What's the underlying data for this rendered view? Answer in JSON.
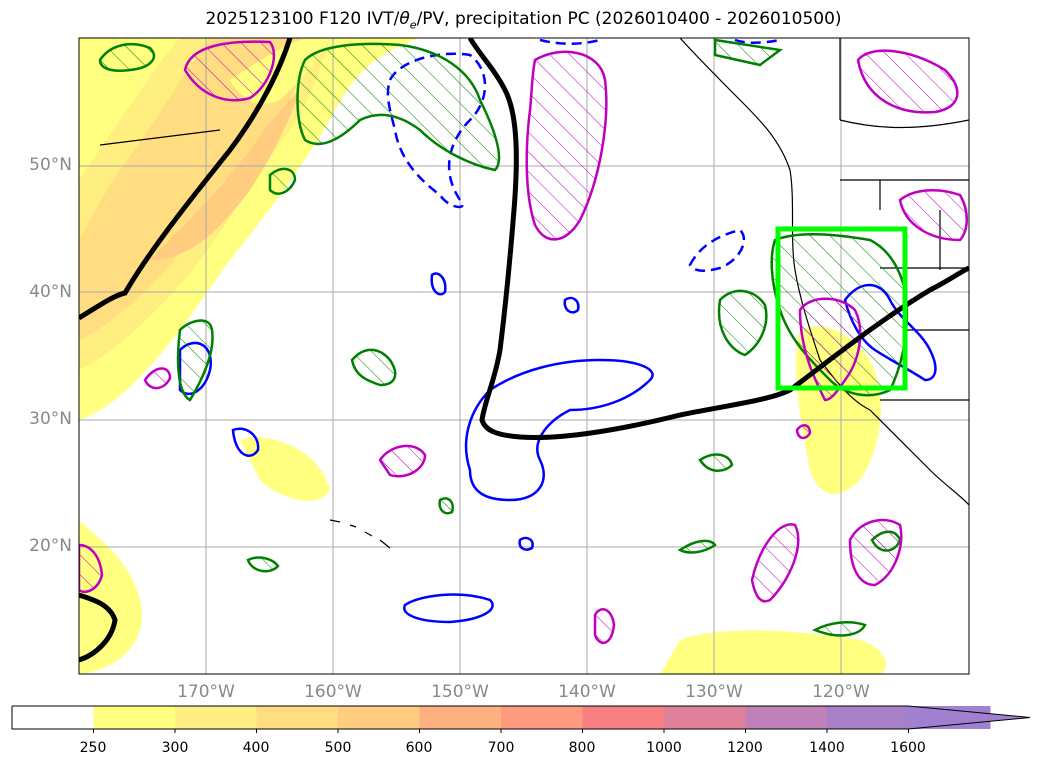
{
  "title_parts": {
    "pre": "2025123100 F120 IVT/",
    "theta": "θ",
    "sub": "e",
    "post": "/PV, precipitation PC (2026010400 - 2026010500)"
  },
  "map": {
    "lat_labels": [
      "50°N",
      "40°N",
      "30°N",
      "20°N"
    ],
    "lon_labels": [
      "170°W",
      "160°W",
      "150°W",
      "140°W",
      "130°W",
      "120°W"
    ],
    "lon_range": [
      -180,
      -110
    ],
    "lat_range": [
      10,
      60
    ],
    "grid": true,
    "highlight_box": {
      "lon": [
        -125,
        -115
      ],
      "lat": [
        32.5,
        45
      ],
      "color": "#00ff00"
    }
  },
  "colorbar": {
    "labels": [
      "250",
      "300",
      "400",
      "500",
      "600",
      "700",
      "800",
      "1000",
      "1200",
      "1400",
      "1600"
    ],
    "colors": [
      "#ffffff",
      "#ffff80",
      "#ffee80",
      "#ffdd80",
      "#ffcc80",
      "#ffb080",
      "#ff9980",
      "#f88080",
      "#e0809a",
      "#c080b8",
      "#a880c8",
      "#a080d0"
    ],
    "extend": "max"
  },
  "colors": {
    "ivt_low": "#ffff80",
    "ivt_mid": "#ffd880",
    "ivt_high": "#ffb080",
    "theta_contour": "#000000",
    "pv_positive": "#008000",
    "pv_negative": "#0000ff",
    "precip": "#c000c0"
  }
}
